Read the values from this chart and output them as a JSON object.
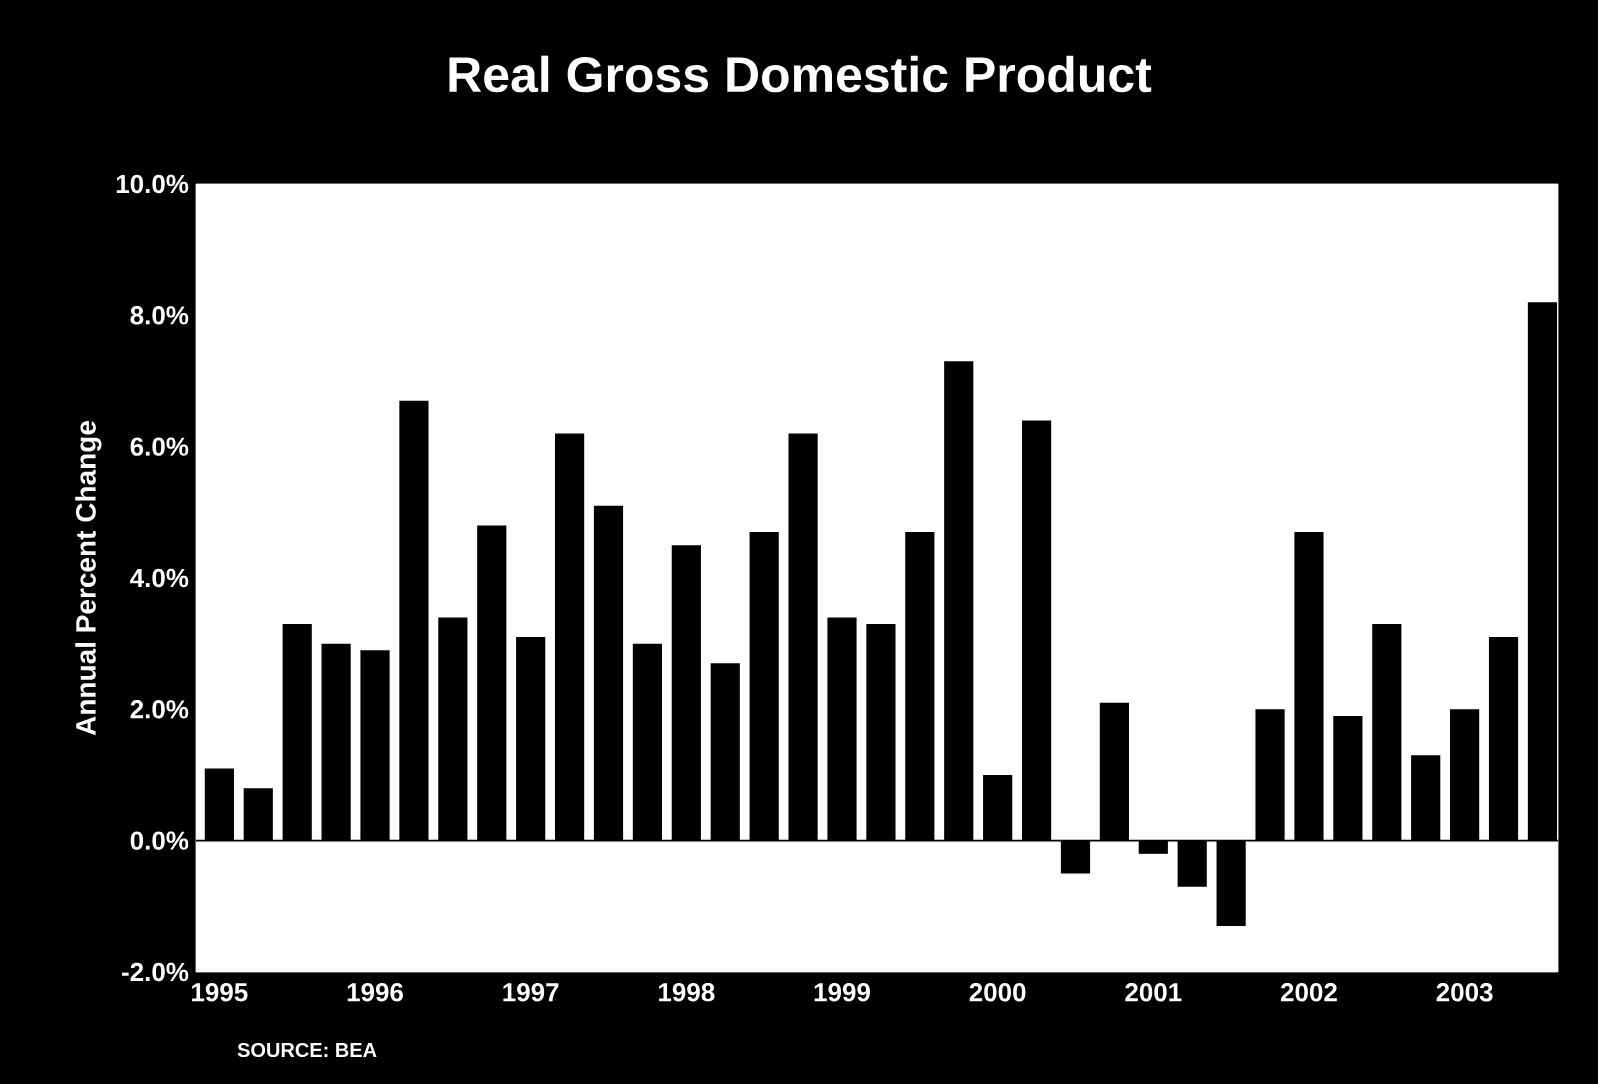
{
  "chart_data": {
    "type": "bar",
    "title": "Real Gross Domestic Product",
    "ylabel": "Annual Percent Change",
    "categories": [
      "1995",
      null,
      null,
      null,
      "1996",
      null,
      null,
      null,
      "1997",
      null,
      null,
      null,
      "1998",
      null,
      null,
      null,
      "1999",
      null,
      null,
      null,
      "2000",
      null,
      null,
      null,
      "2001",
      null,
      null,
      null,
      "2002",
      null,
      null,
      null,
      "2003",
      null,
      null
    ],
    "values": [
      1.1,
      0.8,
      3.3,
      3.0,
      2.9,
      6.7,
      3.4,
      4.8,
      3.1,
      6.2,
      5.1,
      3.0,
      4.5,
      2.7,
      4.7,
      6.2,
      3.4,
      3.3,
      4.7,
      7.3,
      1.0,
      6.4,
      -0.5,
      2.1,
      -0.2,
      -0.7,
      -1.3,
      2.0,
      4.7,
      1.9,
      3.3,
      1.3,
      2.0,
      3.1,
      8.2
    ],
    "color": "#000000",
    "ylim": [
      -2,
      10
    ],
    "yticks": [
      {
        "value": -2,
        "label": "-2.0%"
      },
      {
        "value": 0,
        "label": "0.0%"
      },
      {
        "value": 2,
        "label": "2.0%"
      },
      {
        "value": 4,
        "label": "4.0%"
      },
      {
        "value": 6,
        "label": "6.0%"
      },
      {
        "value": 8,
        "label": "8.0%"
      },
      {
        "value": 10,
        "label": "10.0%"
      }
    ],
    "ref_lines": [
      {
        "axis": "y",
        "value": 0,
        "color": "#000000"
      }
    ],
    "annotations": [
      "SOURCE: BEA"
    ]
  }
}
